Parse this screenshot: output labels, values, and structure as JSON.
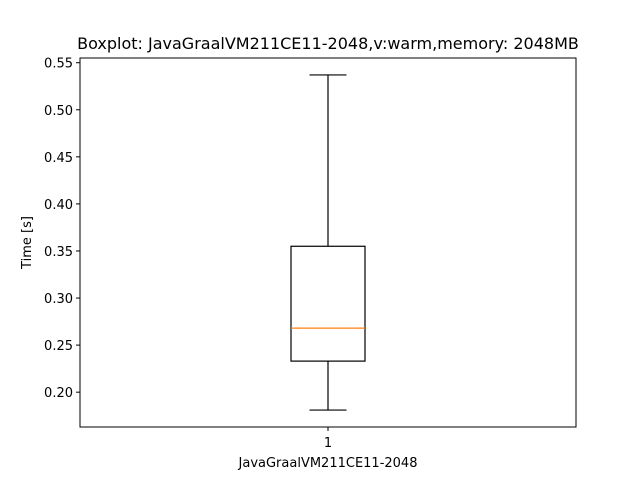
{
  "chart_data": {
    "type": "boxplot",
    "title": "Boxplot: JavaGraalVM211CE11-2048,v:warm,memory: 2048MB",
    "xlabel": "JavaGraalVM211CE11-2048",
    "ylabel": "Time [s]",
    "categories": [
      "1"
    ],
    "boxes": [
      {
        "category": "1",
        "whisker_low": 0.181,
        "q1": 0.233,
        "median": 0.268,
        "q3": 0.355,
        "whisker_high": 0.537
      }
    ],
    "ylim": [
      0.163,
      0.555
    ],
    "yticks": [
      "0.20",
      "0.25",
      "0.30",
      "0.35",
      "0.40",
      "0.45",
      "0.50",
      "0.55"
    ],
    "grid": false,
    "colors": {
      "box": "#000000",
      "median": "#ff7f0e",
      "whisker": "#000000"
    }
  }
}
